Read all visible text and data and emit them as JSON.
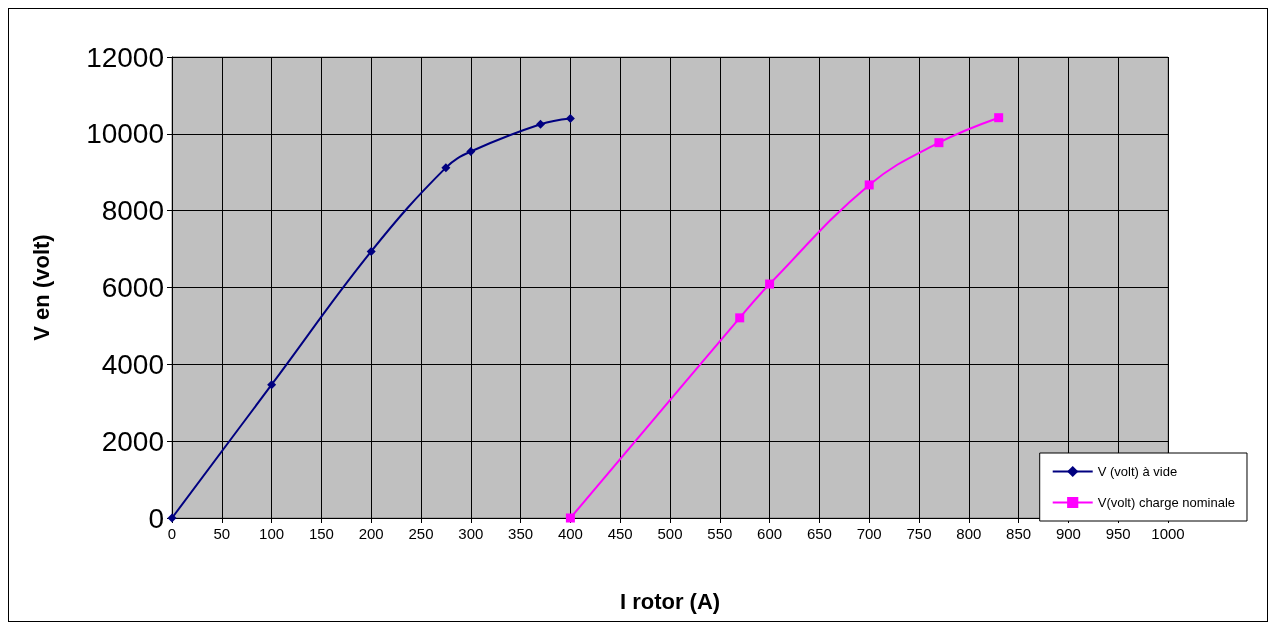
{
  "chart_data": {
    "type": "line",
    "xlabel": "I rotor (A)",
    "ylabel": "V en (volt)",
    "xlim": [
      0,
      1000
    ],
    "xticks": [
      0,
      50,
      100,
      150,
      200,
      250,
      300,
      350,
      400,
      450,
      500,
      550,
      600,
      650,
      700,
      750,
      800,
      850,
      900,
      950,
      1000
    ],
    "ylim": [
      0,
      12000
    ],
    "yticks": [
      0,
      2000,
      4000,
      6000,
      8000,
      10000,
      12000
    ],
    "grid": true,
    "legend": "bottom right",
    "series": [
      {
        "name": "V (volt) à vide",
        "color": "#000080",
        "marker": "diamond",
        "x": [
          0,
          100,
          200,
          275,
          300,
          370,
          400
        ],
        "values": [
          0,
          3470,
          6940,
          9120,
          9540,
          10250,
          10400
        ]
      },
      {
        "name": "V(volt) charge nominale",
        "color": "#ff00ff",
        "marker": "square",
        "x": [
          400,
          570,
          600,
          700,
          770,
          830
        ],
        "values": [
          0,
          5210,
          6090,
          8670,
          9770,
          10420
        ]
      }
    ]
  }
}
